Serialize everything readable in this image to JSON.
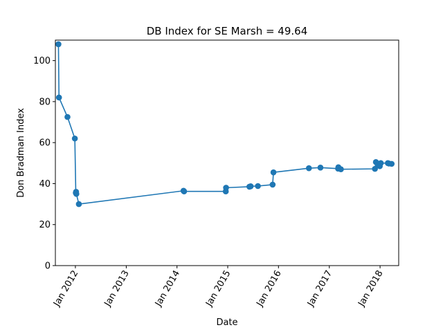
{
  "chart_data": {
    "type": "line",
    "title": "DB Index for SE Marsh = 49.64",
    "xlabel": "Date",
    "ylabel": "Don Bradman Index",
    "ylim": [
      0,
      110
    ],
    "yticks": [
      0,
      20,
      40,
      60,
      80,
      100
    ],
    "xticks": [
      {
        "date": "2012-01-01",
        "label": "Jan 2012"
      },
      {
        "date": "2013-01-01",
        "label": "Jan 2013"
      },
      {
        "date": "2014-01-01",
        "label": "Jan 2014"
      },
      {
        "date": "2015-01-01",
        "label": "Jan 2015"
      },
      {
        "date": "2016-01-01",
        "label": "Jan 2016"
      },
      {
        "date": "2017-01-01",
        "label": "Jan 2017"
      },
      {
        "date": "2018-01-01",
        "label": "Jan 2018"
      }
    ],
    "xlim": [
      "2011-08-10",
      "2018-05-15"
    ],
    "grid": false,
    "color": "#1f77b4",
    "series": [
      {
        "name": "",
        "points": [
          {
            "x": "2011-09-01",
            "y": 108
          },
          {
            "x": "2011-09-05",
            "y": 82
          },
          {
            "x": "2011-11-05",
            "y": 72.5
          },
          {
            "x": "2011-12-28",
            "y": 62
          },
          {
            "x": "2012-01-04",
            "y": 35.5
          },
          {
            "x": "2012-01-06",
            "y": 36
          },
          {
            "x": "2012-01-08",
            "y": 35
          },
          {
            "x": "2012-01-26",
            "y": 30
          },
          {
            "x": "2014-02-17",
            "y": 36.5
          },
          {
            "x": "2014-02-21",
            "y": 36.2
          },
          {
            "x": "2014-12-18",
            "y": 36.2
          },
          {
            "x": "2014-12-20",
            "y": 38
          },
          {
            "x": "2015-06-06",
            "y": 38.5
          },
          {
            "x": "2015-06-15",
            "y": 38.7
          },
          {
            "x": "2015-08-06",
            "y": 38.8
          },
          {
            "x": "2015-11-20",
            "y": 39.5
          },
          {
            "x": "2015-11-26",
            "y": 45.5
          },
          {
            "x": "2016-08-07",
            "y": 47.5
          },
          {
            "x": "2016-10-29",
            "y": 47.8
          },
          {
            "x": "2017-03-05",
            "y": 47.3
          },
          {
            "x": "2017-03-07",
            "y": 48
          },
          {
            "x": "2017-03-25",
            "y": 47
          },
          {
            "x": "2017-11-25",
            "y": 47.2
          },
          {
            "x": "2017-12-02",
            "y": 50.5
          },
          {
            "x": "2017-12-16",
            "y": 49.3
          },
          {
            "x": "2017-12-30",
            "y": 48.5
          },
          {
            "x": "2018-01-06",
            "y": 50
          },
          {
            "x": "2018-02-26",
            "y": 50
          },
          {
            "x": "2018-03-06",
            "y": 49.8
          },
          {
            "x": "2018-03-25",
            "y": 49.64
          }
        ]
      }
    ]
  }
}
